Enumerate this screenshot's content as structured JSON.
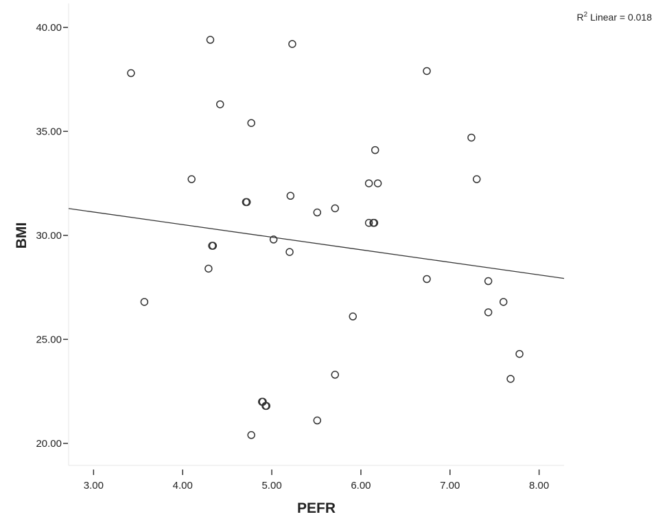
{
  "chart_data": {
    "type": "scatter",
    "title": "",
    "xlabel": "PEFR",
    "ylabel": "BMI",
    "xlim": [
      2.72,
      8.28
    ],
    "ylim": [
      18.94,
      41.15
    ],
    "xticks": [
      3,
      4,
      5,
      6,
      7,
      8
    ],
    "xtick_labels": [
      "3.00",
      "4.00",
      "5.00",
      "6.00",
      "7.00",
      "8.00"
    ],
    "yticks": [
      20,
      25,
      30,
      35,
      40
    ],
    "ytick_labels": [
      "20.00",
      "25.00",
      "30.00",
      "35.00",
      "40.00"
    ],
    "grid": false,
    "annotation": {
      "prefix": "R",
      "sup": "2",
      "text": " Linear = 0.018"
    },
    "points": [
      {
        "x": 3.42,
        "y": 37.8
      },
      {
        "x": 4.31,
        "y": 39.4
      },
      {
        "x": 5.23,
        "y": 39.2
      },
      {
        "x": 6.74,
        "y": 37.9
      },
      {
        "x": 4.42,
        "y": 36.3
      },
      {
        "x": 4.77,
        "y": 35.4
      },
      {
        "x": 6.16,
        "y": 34.1
      },
      {
        "x": 7.24,
        "y": 34.7
      },
      {
        "x": 4.1,
        "y": 32.7
      },
      {
        "x": 7.3,
        "y": 32.7
      },
      {
        "x": 6.09,
        "y": 32.5
      },
      {
        "x": 6.19,
        "y": 32.5
      },
      {
        "x": 5.21,
        "y": 31.9
      },
      {
        "x": 4.71,
        "y": 31.6
      },
      {
        "x": 4.72,
        "y": 31.6
      },
      {
        "x": 5.71,
        "y": 31.3
      },
      {
        "x": 5.51,
        "y": 31.1
      },
      {
        "x": 6.09,
        "y": 30.6
      },
      {
        "x": 6.14,
        "y": 30.6
      },
      {
        "x": 6.15,
        "y": 30.6
      },
      {
        "x": 5.02,
        "y": 29.8
      },
      {
        "x": 4.33,
        "y": 29.5
      },
      {
        "x": 4.34,
        "y": 29.5
      },
      {
        "x": 5.2,
        "y": 29.2
      },
      {
        "x": 4.29,
        "y": 28.4
      },
      {
        "x": 6.74,
        "y": 27.9
      },
      {
        "x": 7.43,
        "y": 27.8
      },
      {
        "x": 3.57,
        "y": 26.8
      },
      {
        "x": 7.6,
        "y": 26.8
      },
      {
        "x": 5.91,
        "y": 26.1
      },
      {
        "x": 7.43,
        "y": 26.3
      },
      {
        "x": 7.78,
        "y": 24.3
      },
      {
        "x": 7.68,
        "y": 23.1
      },
      {
        "x": 5.71,
        "y": 23.3
      },
      {
        "x": 4.89,
        "y": 22.0
      },
      {
        "x": 4.9,
        "y": 22.0
      },
      {
        "x": 4.93,
        "y": 21.8
      },
      {
        "x": 4.94,
        "y": 21.8
      },
      {
        "x": 5.51,
        "y": 21.1
      },
      {
        "x": 4.77,
        "y": 20.4
      }
    ],
    "fit_line": {
      "type": "linear",
      "x": [
        2.72,
        8.28
      ],
      "y": [
        31.29,
        27.93
      ]
    },
    "colors": {
      "marker": "#333333",
      "line": "#333333",
      "axis": "#e6e6e6"
    }
  }
}
